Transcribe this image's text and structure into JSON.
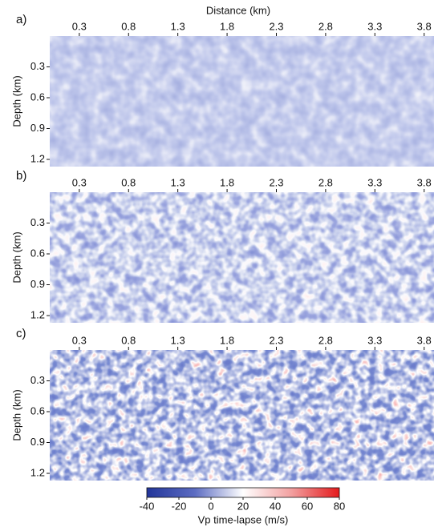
{
  "chart_data": [
    {
      "type": "image",
      "label": "a)",
      "xlabel": "Distance (km)",
      "ylabel": "Depth (km)",
      "xlim": [
        0,
        3.9
      ],
      "ylim": [
        1.27,
        0
      ],
      "xticks": [
        0.3,
        0.8,
        1.3,
        1.8,
        2.3,
        2.8,
        3.3,
        3.8
      ],
      "yticks": [
        0.3,
        0.6,
        0.9,
        1.2
      ]
    },
    {
      "type": "image",
      "label": "b)",
      "ylabel": "Depth (km)",
      "xlim": [
        0,
        3.9
      ],
      "ylim": [
        1.27,
        0
      ],
      "xticks": [
        0.3,
        0.8,
        1.3,
        1.8,
        2.3,
        2.8,
        3.3,
        3.8
      ],
      "yticks": [
        0.3,
        0.6,
        0.9,
        1.2
      ]
    },
    {
      "type": "image",
      "label": "c)",
      "ylabel": "Depth (km)",
      "xlim": [
        0,
        3.9
      ],
      "ylim": [
        1.27,
        0
      ],
      "xticks": [
        0.3,
        0.8,
        1.3,
        1.8,
        2.3,
        2.8,
        3.3,
        3.8
      ],
      "yticks": [
        0.3,
        0.6,
        0.9,
        1.2
      ]
    },
    {
      "type": "colorbar",
      "xlabel": "Vp time-lapse (m/s)",
      "xlim": [
        -40,
        80
      ],
      "xticks": [
        -40,
        -20,
        0,
        20,
        40,
        60,
        80
      ],
      "colors": [
        "#22359a",
        "#5c6cc2",
        "#ffffff",
        "#f2a0a0",
        "#e41a1c"
      ]
    }
  ]
}
